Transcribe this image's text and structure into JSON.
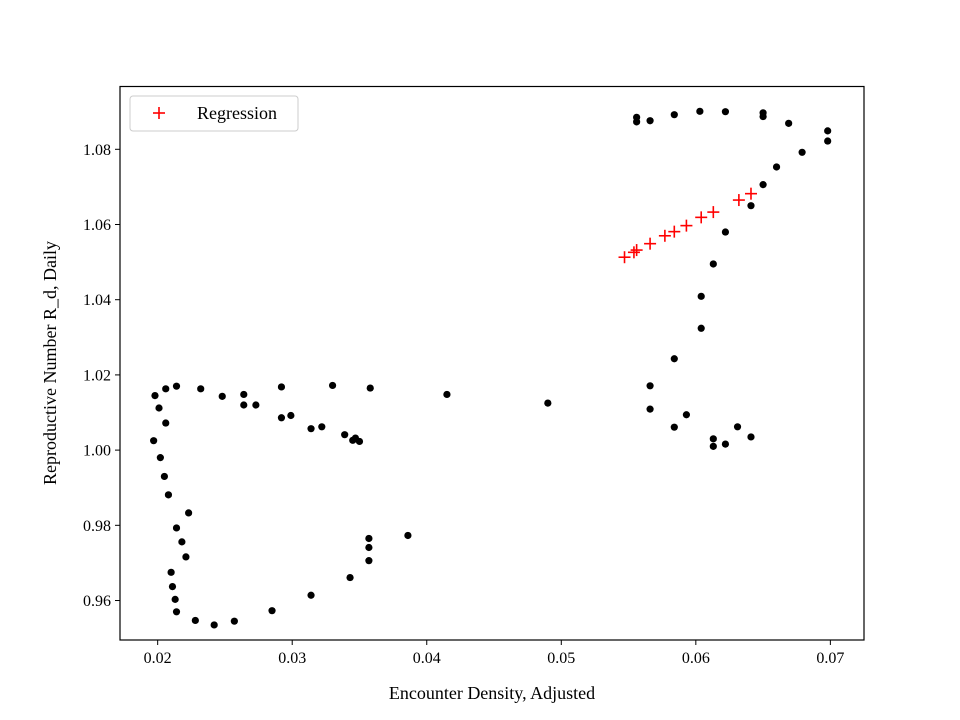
{
  "chart_data": {
    "type": "scatter",
    "title": "",
    "xlabel": "Encounter Density, Adjusted",
    "ylabel": "Reproductive Number R_d, Daily",
    "xlim": [
      0.0172,
      0.0725
    ],
    "ylim": [
      0.9495,
      1.0967
    ],
    "xticks": [
      0.02,
      0.03,
      0.04,
      0.05,
      0.06,
      0.07
    ],
    "xtick_labels": [
      "0.02",
      "0.03",
      "0.04",
      "0.05",
      "0.06",
      "0.07"
    ],
    "yticks": [
      0.96,
      0.98,
      1.0,
      1.02,
      1.04,
      1.06,
      1.08
    ],
    "ytick_labels": [
      "0.96",
      "0.98",
      "1.00",
      "1.02",
      "1.04",
      "1.06",
      "1.08"
    ],
    "grid": false,
    "legend": {
      "placement": "top-left",
      "entries": [
        {
          "label": "Regression",
          "marker": "plus",
          "color": "#ff0000"
        }
      ]
    },
    "series": [
      {
        "marker": "dot",
        "color": "#000000",
        "points": [
          [
            0.0198,
            1.0145
          ],
          [
            0.0201,
            1.0112
          ],
          [
            0.0206,
            1.0163
          ],
          [
            0.0214,
            1.017
          ],
          [
            0.0206,
            1.0072
          ],
          [
            0.0197,
            1.0025
          ],
          [
            0.0202,
            0.998
          ],
          [
            0.0205,
            0.993
          ],
          [
            0.0208,
            0.9881
          ],
          [
            0.0223,
            0.9833
          ],
          [
            0.0214,
            0.9793
          ],
          [
            0.0218,
            0.9756
          ],
          [
            0.0221,
            0.9716
          ],
          [
            0.021,
            0.9675
          ],
          [
            0.0211,
            0.9637
          ],
          [
            0.0213,
            0.9603
          ],
          [
            0.0214,
            0.957
          ],
          [
            0.0228,
            0.9547
          ],
          [
            0.0242,
            0.9535
          ],
          [
            0.0257,
            0.9545
          ],
          [
            0.0285,
            0.9573
          ],
          [
            0.0314,
            0.9614
          ],
          [
            0.0343,
            0.9661
          ],
          [
            0.0357,
            0.9706
          ],
          [
            0.0357,
            0.9741
          ],
          [
            0.0357,
            0.9765
          ],
          [
            0.0386,
            0.9773
          ],
          [
            0.0232,
            1.0163
          ],
          [
            0.0248,
            1.0143
          ],
          [
            0.0264,
            1.0148
          ],
          [
            0.0264,
            1.012
          ],
          [
            0.0273,
            1.012
          ],
          [
            0.0292,
            1.0168
          ],
          [
            0.0292,
            1.0086
          ],
          [
            0.0299,
            1.0092
          ],
          [
            0.0314,
            1.0057
          ],
          [
            0.0322,
            1.0062
          ],
          [
            0.033,
            1.0172
          ],
          [
            0.0339,
            1.0041
          ],
          [
            0.0345,
            1.0026
          ],
          [
            0.0347,
            1.0032
          ],
          [
            0.035,
            1.0023
          ],
          [
            0.0358,
            1.0165
          ],
          [
            0.0415,
            1.0148
          ],
          [
            0.049,
            1.0125
          ],
          [
            0.0566,
            1.0171
          ],
          [
            0.0566,
            1.0109
          ],
          [
            0.0584,
            1.0061
          ],
          [
            0.0593,
            1.0094
          ],
          [
            0.0613,
            1.003
          ],
          [
            0.0613,
            1.001
          ],
          [
            0.0622,
            1.0016
          ],
          [
            0.0631,
            1.0062
          ],
          [
            0.0641,
            1.0035
          ],
          [
            0.0584,
            1.0243
          ],
          [
            0.0604,
            1.0324
          ],
          [
            0.0604,
            1.0409
          ],
          [
            0.0613,
            1.0495
          ],
          [
            0.0622,
            1.058
          ],
          [
            0.0641,
            1.065
          ],
          [
            0.065,
            1.0706
          ],
          [
            0.066,
            1.0753
          ],
          [
            0.0679,
            1.0792
          ],
          [
            0.0698,
            1.0822
          ],
          [
            0.0698,
            1.0849
          ],
          [
            0.0669,
            1.0869
          ],
          [
            0.065,
            1.0887
          ],
          [
            0.065,
            1.0897
          ],
          [
            0.0622,
            1.09
          ],
          [
            0.0603,
            1.0901
          ],
          [
            0.0584,
            1.0892
          ],
          [
            0.0566,
            1.0876
          ],
          [
            0.0556,
            1.0873
          ],
          [
            0.0556,
            1.0885
          ]
        ]
      },
      {
        "name": "Regression",
        "marker": "plus",
        "color": "#ff0000",
        "points": [
          [
            0.0547,
            1.0513
          ],
          [
            0.0554,
            1.0526
          ],
          [
            0.0556,
            1.0532
          ],
          [
            0.0566,
            1.0549
          ],
          [
            0.0577,
            1.057
          ],
          [
            0.0584,
            1.0581
          ],
          [
            0.0593,
            1.0597
          ],
          [
            0.0604,
            1.0619
          ],
          [
            0.0613,
            1.0633
          ],
          [
            0.0632,
            1.0665
          ],
          [
            0.0641,
            1.0682
          ]
        ]
      }
    ]
  }
}
